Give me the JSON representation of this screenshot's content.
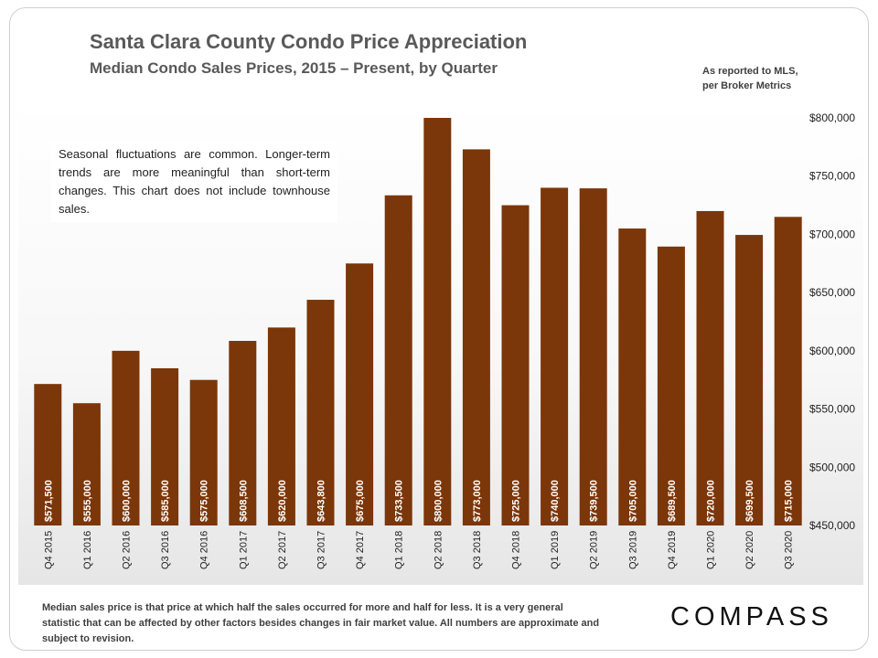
{
  "header": {
    "title": "Santa Clara County Condo Price Appreciation",
    "subtitle": "Median Condo Sales Prices, 2015 – Present, by Quarter",
    "source_line1": "As reported to MLS,",
    "source_line2": "per Broker Metrics"
  },
  "annotation": "Seasonal fluctuations are common. Longer-term trends are more meaningful than short-term changes. This chart does not include townhouse sales.",
  "footnote": "Median sales price is that price at which half the sales occurred for more and half for less. It is a very general statistic that can be affected by other factors besides changes in fair market value. All numbers are approximate and subject to revision.",
  "brand": {
    "logo_text": "COMPASS"
  },
  "colors": {
    "bar": "#7b3609",
    "bar_label": "#ffffff",
    "axis_text": "#1f1f1f"
  },
  "chart_data": {
    "type": "bar",
    "title": "Santa Clara County Condo Price Appreciation",
    "subtitle": "Median Condo Sales Prices, 2015 – Present, by Quarter",
    "categories": [
      "Q4 2015",
      "Q1 2016",
      "Q2 2016",
      "Q3 2016",
      "Q4 2016",
      "Q1 2017",
      "Q2 2017",
      "Q3 2017",
      "Q4 2017",
      "Q1 2018",
      "Q2 2018",
      "Q3 2018",
      "Q4 2018",
      "Q1 2019",
      "Q2 2019",
      "Q3 2019",
      "Q4 2019",
      "Q1 2020",
      "Q2 2020",
      "Q3 2020"
    ],
    "values": [
      571500,
      555000,
      600000,
      585000,
      575000,
      608500,
      620000,
      643800,
      675000,
      733500,
      800000,
      773000,
      725000,
      740000,
      739500,
      705000,
      689500,
      720000,
      699500,
      715000
    ],
    "data_labels": [
      "$571,500",
      "$555,000",
      "$600,000",
      "$585,000",
      "$575,000",
      "$608,500",
      "$620,000",
      "$643,800",
      "$675,000",
      "$733,500",
      "$800,000",
      "$773,000",
      "$725,000",
      "$740,000",
      "$739,500",
      "$705,000",
      "$689,500",
      "$720,000",
      "$699,500",
      "$715,000"
    ],
    "y_ticks": [
      450000,
      500000,
      550000,
      600000,
      650000,
      700000,
      750000,
      800000
    ],
    "y_tick_labels": [
      "$450,000",
      "$500,000",
      "$550,000",
      "$600,000",
      "$650,000",
      "$700,000",
      "$750,000",
      "$800,000"
    ],
    "ylim": [
      450000,
      800000
    ],
    "y_axis_side": "right",
    "grid": false,
    "legend": "none",
    "xlabel": "",
    "ylabel": ""
  }
}
